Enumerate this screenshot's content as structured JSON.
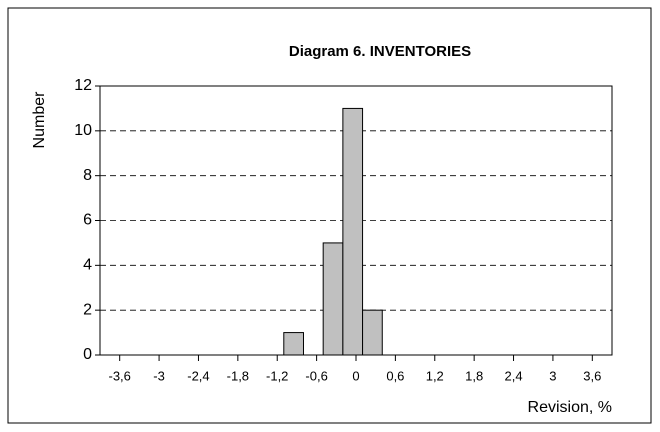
{
  "chart_data": {
    "type": "histogram",
    "title": "Diagram 6.  INVENTORIES",
    "x_label": "Revision, %",
    "y_label": "Number",
    "bins": [
      -1.1,
      -0.8,
      -0.5,
      -0.2,
      0.1,
      0.4
    ],
    "counts": [
      1,
      0,
      5,
      11,
      2
    ],
    "color": "#c0c0c0",
    "xlim": [
      -3.9,
      3.9
    ],
    "xticks": [
      {
        "value": -3.6,
        "label": "-3,6"
      },
      -3,
      {
        "value": -2.4,
        "label": "-2,4"
      },
      {
        "value": -1.8,
        "label": "-1,8"
      },
      {
        "value": -1.2,
        "label": "-1,2"
      },
      {
        "value": -0.6,
        "label": "-0,6"
      },
      0,
      {
        "value": 0.6,
        "label": "0,6"
      },
      {
        "value": 1.2,
        "label": "1,2"
      },
      {
        "value": 1.8,
        "label": "1,8"
      },
      {
        "value": 2.4,
        "label": "2,4"
      },
      3,
      {
        "value": 3.6,
        "label": "3,6"
      }
    ],
    "ylim": [
      0,
      12
    ],
    "yticks": [
      0,
      2,
      4,
      6,
      8,
      10,
      12
    ],
    "grid": true
  }
}
